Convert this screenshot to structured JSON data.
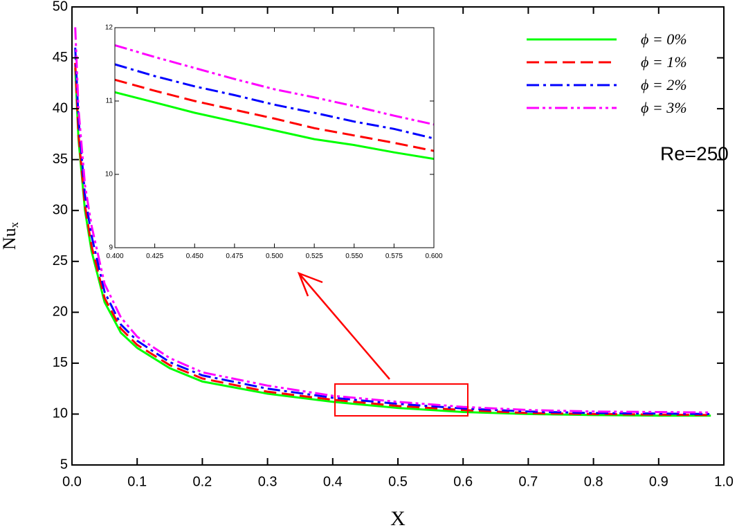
{
  "chart_data": [
    {
      "type": "line",
      "xlabel": "X",
      "ylabel": "Nu",
      "ylabel_subscript": "x",
      "annotation": "Re=250",
      "annotation_color": "#ff0000",
      "legend": "upper right",
      "xlim": [
        0,
        1
      ],
      "ylim": [
        5,
        50
      ],
      "xticks": [
        {
          "value": 0,
          "label": "0.0"
        },
        0.1,
        0.2,
        0.3,
        0.4,
        0.5,
        0.6,
        0.7,
        0.8,
        0.9,
        {
          "value": 1,
          "label": "1.0"
        }
      ],
      "yticks": [
        5,
        10,
        15,
        20,
        25,
        30,
        35,
        40,
        45,
        50
      ],
      "x": [
        0.005,
        0.01,
        0.02,
        0.03,
        0.05,
        0.075,
        0.1,
        0.15,
        0.2,
        0.3,
        0.4,
        0.5,
        0.6,
        0.7,
        0.8,
        0.9,
        0.98
      ],
      "series": [
        {
          "name": "ϕ = 0%",
          "color": "#00ff00",
          "dash": "solid",
          "values": [
            44,
            37,
            30,
            26,
            21,
            18,
            16.5,
            14.5,
            13.2,
            12.0,
            11.2,
            10.6,
            10.2,
            10.0,
            9.9,
            9.85,
            9.85
          ]
        },
        {
          "name": "ϕ = 1%",
          "color": "#ff0000",
          "dash": "dashed",
          "values": [
            44.5,
            37.5,
            30.5,
            26.5,
            21.4,
            18.4,
            16.8,
            14.8,
            13.5,
            12.2,
            11.4,
            10.8,
            10.4,
            10.1,
            10.0,
            9.95,
            9.9
          ]
        },
        {
          "name": "ϕ = 2%",
          "color": "#0000ff",
          "dash": "dashdot",
          "values": [
            46,
            39,
            31.5,
            27.5,
            22,
            18.8,
            17.2,
            15.1,
            13.8,
            12.5,
            11.6,
            11.0,
            10.55,
            10.25,
            10.1,
            10.05,
            10.0
          ]
        },
        {
          "name": "ϕ = 3%",
          "color": "#ff00ff",
          "dash": "dashdotdot",
          "values": [
            48,
            40,
            32.5,
            28.5,
            22.8,
            19.5,
            17.6,
            15.5,
            14.1,
            12.8,
            11.8,
            11.2,
            10.7,
            10.4,
            10.25,
            10.2,
            10.15
          ]
        }
      ]
    },
    {
      "type": "line",
      "xlim": [
        0.4,
        0.6
      ],
      "ylim": [
        9,
        12
      ],
      "xticks": [
        {
          "value": 0.4,
          "label": "0.400"
        },
        0.425,
        {
          "value": 0.45,
          "label": "0.450"
        },
        0.475,
        {
          "value": 0.5,
          "label": "0.500"
        },
        0.525,
        {
          "value": 0.55,
          "label": "0.550"
        },
        0.575,
        {
          "value": 0.6,
          "label": "0.600"
        }
      ],
      "yticks": [
        9,
        10,
        11,
        12
      ],
      "x": [
        0.4,
        0.425,
        0.45,
        0.475,
        0.5,
        0.525,
        0.55,
        0.575,
        0.6
      ],
      "series": [
        {
          "color": "#00ff00",
          "dash": "solid",
          "values": [
            11.12,
            10.98,
            10.84,
            10.72,
            10.6,
            10.48,
            10.4,
            10.3,
            10.21
          ]
        },
        {
          "color": "#ff0000",
          "dash": "dashed",
          "values": [
            11.29,
            11.14,
            11.0,
            10.88,
            10.76,
            10.63,
            10.53,
            10.43,
            10.32
          ]
        },
        {
          "color": "#0000ff",
          "dash": "dashdot",
          "values": [
            11.5,
            11.34,
            11.2,
            11.08,
            10.95,
            10.84,
            10.72,
            10.62,
            10.49
          ]
        },
        {
          "color": "#ff00ff",
          "dash": "dashdotdot",
          "values": [
            11.76,
            11.6,
            11.45,
            11.3,
            11.16,
            11.05,
            10.93,
            10.8,
            10.68
          ]
        }
      ]
    }
  ]
}
